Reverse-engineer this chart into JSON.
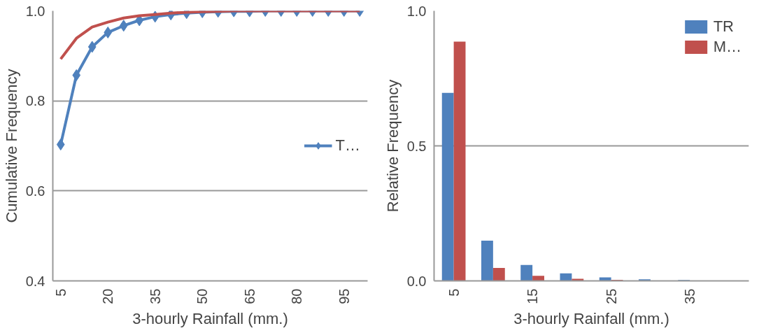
{
  "chart_data": [
    {
      "type": "line",
      "xlabel": "3-hourly Rainfall (mm.)",
      "ylabel": "Cumulative Frequency",
      "categories": [
        "5",
        null,
        null,
        "20",
        null,
        null,
        "35",
        null,
        null,
        "50",
        null,
        null,
        "65",
        null,
        null,
        "80",
        null,
        null,
        "95",
        null
      ],
      "series": [
        {
          "name": "T…",
          "color": "#4f81bd",
          "marker": "diamond",
          "values": [
            0.703,
            0.857,
            0.92,
            0.952,
            0.967,
            0.979,
            0.987,
            0.992,
            0.995,
            0.997,
            0.998,
            0.999,
            0.999,
            1.0,
            1.0,
            1.0,
            1.0,
            1.0,
            1.0,
            1.0
          ]
        },
        {
          "color": "#c0504d",
          "marker": "none",
          "values": [
            0.893,
            0.939,
            0.964,
            0.975,
            0.984,
            0.989,
            0.992,
            0.995,
            0.997,
            0.998,
            0.999,
            1.0,
            1.0,
            1.0,
            1.0,
            1.0,
            1.0,
            1.0,
            1.0,
            1.0
          ]
        }
      ],
      "ylim": [
        0.4,
        1.0
      ],
      "yticks": [
        {
          "value": 0.4,
          "label": "0.4"
        },
        {
          "value": 0.6,
          "label": "0.6"
        },
        {
          "value": 0.8,
          "label": "0.8"
        },
        {
          "value": 1.0,
          "label": "1.0"
        }
      ],
      "grid": "y",
      "legend": "right"
    },
    {
      "type": "bar",
      "xlabel": "3-hourly Rainfall (mm.)",
      "ylabel": "Relative Frequency",
      "categories": [
        "5",
        null,
        "15",
        null,
        "25",
        null,
        "35",
        null
      ],
      "series": [
        {
          "name": "TR",
          "color": "#4f81bd",
          "values": [
            0.696,
            0.149,
            0.059,
            0.028,
            0.013,
            0.006,
            0.003,
            null
          ]
        },
        {
          "name": "M…",
          "color": "#c0504d",
          "values": [
            0.886,
            0.048,
            0.019,
            0.008,
            0.004,
            null,
            null,
            null
          ]
        }
      ],
      "ylim": [
        0,
        1.0
      ],
      "yticks": [
        {
          "value": 0,
          "label": "0.0"
        },
        {
          "value": 0.5,
          "label": "0.5"
        },
        {
          "value": 1.0,
          "label": "1.0"
        }
      ],
      "grid": "y",
      "legend": "top right"
    }
  ]
}
